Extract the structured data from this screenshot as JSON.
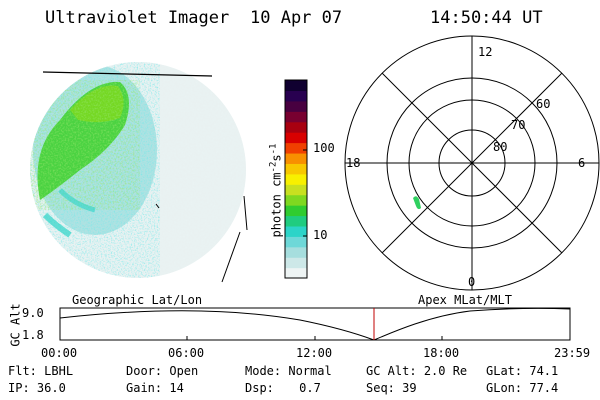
{
  "header": {
    "title": "Ultraviolet Imager",
    "date": "10 Apr 07",
    "time": "14:50:44 UT"
  },
  "colorbar": {
    "unit_label": "photon cm",
    "unit_sup1": "-2",
    "unit_mid": "s",
    "unit_sup2": "-1",
    "ticks": [
      "100",
      "10"
    ],
    "colors": [
      "#eef4f4",
      "#cde8e8",
      "#a6dede",
      "#6ed8d8",
      "#2cd4c8",
      "#20cc80",
      "#30cc30",
      "#7fd820",
      "#c8e020",
      "#f8f000",
      "#f8c800",
      "#f89000",
      "#f04000",
      "#d80000",
      "#a80010",
      "#780030",
      "#480040",
      "#280050",
      "#100030"
    ]
  },
  "polar": {
    "clock_labels": [
      "12",
      "18",
      "6",
      "0"
    ],
    "lat_labels": [
      "60",
      "70",
      "80"
    ]
  },
  "panel_labels": {
    "left": "Geographic Lat/Lon",
    "right": "Apex MLat/MLT"
  },
  "altitude": {
    "axis_label": "GC Alt",
    "top_value": "9.0",
    "bottom_value": "1.8",
    "marker_time": "14:50"
  },
  "time_ticks": [
    "00:00",
    "06:00",
    "12:00",
    "18:00",
    "23:59"
  ],
  "status": [
    [
      {
        "label": "Flt:",
        "value": "LBHL"
      },
      {
        "label": "Door:",
        "value": "Open"
      },
      {
        "label": "Mode:",
        "value": "Normal"
      },
      {
        "label": "GC Alt:",
        "value": "2.0 Re"
      },
      {
        "label": "GLat:",
        "value": "74.1"
      }
    ],
    [
      {
        "label": "IP:",
        "value": "36.0"
      },
      {
        "label": "Gain:",
        "value": "14"
      },
      {
        "label": "Dsp:",
        "value": "0.7"
      },
      {
        "label": "Seq:",
        "value": "39"
      },
      {
        "label": "GLon:",
        "value": "77.4"
      }
    ]
  ],
  "accent": {
    "marker": "#c00000",
    "aurora": "#40d020"
  }
}
